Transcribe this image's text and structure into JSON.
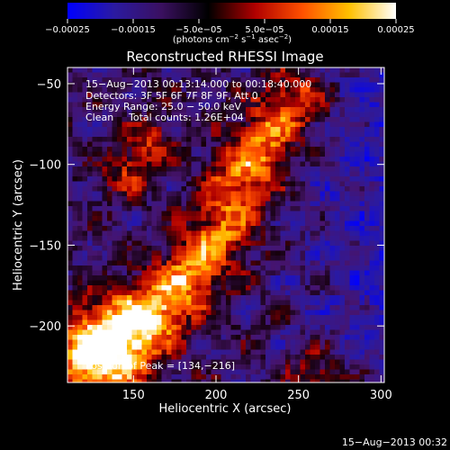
{
  "chart_data": {
    "type": "heatmap",
    "title": "Reconstructed RHESSI Image",
    "xlabel": "Heliocentric X (arcsec)",
    "ylabel": "Heliocentric Y (arcsec)",
    "xlim": [
      110,
      302
    ],
    "ylim": [
      -235,
      -40
    ],
    "x_ticks": [
      150,
      200,
      250,
      300
    ],
    "y_ticks": [
      -50,
      -100,
      -150,
      -200
    ],
    "x_tick_labels": [
      "150",
      "200",
      "250",
      "300"
    ],
    "y_tick_labels": [
      "−50",
      "−100",
      "−150",
      "−200"
    ],
    "colorbar": {
      "range": [
        -0.00025,
        0.00025
      ],
      "ticks": [
        -0.00025,
        -0.00015,
        -5e-05,
        5e-05,
        0.00015,
        0.00025
      ],
      "tick_labels": [
        "−0.00025",
        "−0.00015",
        "−5.0e−05",
        "5.0e−05",
        "0.00015",
        "0.00025"
      ],
      "unit_main": "(photons cm",
      "unit_exp1": "−2",
      "unit_mid": " s",
      "unit_exp2": "−1",
      "unit_end": " asec",
      "unit_exp3": "−2",
      "unit_close": ")",
      "colors": [
        "#0000ff",
        "#2b1aa0",
        "#3a1060",
        "#000000",
        "#b00000",
        "#ff5000",
        "#ffc000",
        "#ffffff"
      ]
    },
    "annotations": {
      "time_range": "15−Aug−2013 00:13:14.000 to 00:18:40.000",
      "detectors": "Detectors: 3F 5F 6F 7F 8F 9F, Att 0",
      "energy": "Energy Range: 25.0 − 50.0 keV",
      "clean_label": "Clean",
      "counts": "Total counts: 1.26E+04",
      "peak": "Position of Peak = [134,−216]"
    },
    "peak_position": [
      134,
      -216
    ],
    "bright_ridge": [
      [
        125,
        -218
      ],
      [
        150,
        -200
      ],
      [
        170,
        -185
      ],
      [
        188,
        -165
      ],
      [
        205,
        -140
      ],
      [
        215,
        -110
      ],
      [
        230,
        -85
      ],
      [
        250,
        -60
      ]
    ],
    "secondary_blobs": [
      [
        160,
        -85
      ],
      [
        145,
        -105
      ],
      [
        260,
        -228
      ]
    ]
  },
  "footer": {
    "timestamp": "15−Aug−2013 00:32"
  }
}
